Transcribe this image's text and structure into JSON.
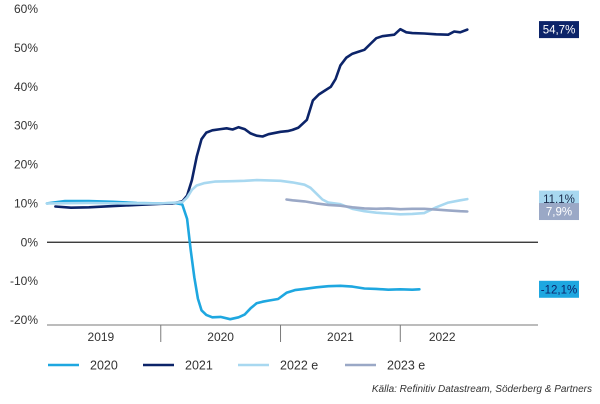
{
  "chart_data": {
    "type": "line",
    "title": "",
    "xlabel": "",
    "ylabel": "",
    "ylim": [
      -20,
      60
    ],
    "y_ticks": [
      60,
      50,
      40,
      30,
      20,
      10,
      0,
      -10,
      -20
    ],
    "y_tick_labels": [
      "60%",
      "50%",
      "40%",
      "30%",
      "20%",
      "10%",
      "0%",
      "-10%",
      "-20%"
    ],
    "x_range": [
      2018.55,
      2022.65
    ],
    "x_tick_labels": [
      {
        "label": "2019",
        "x": 2019.0
      },
      {
        "label": "2020",
        "x": 2020.0
      },
      {
        "label": "2021",
        "x": 2021.0
      },
      {
        "label": "2022",
        "x": 2021.85
      }
    ],
    "x_separators": [
      2019.5,
      2020.5,
      2021.5
    ],
    "grid": false,
    "legend_position": "bottom",
    "series": [
      {
        "name": "2020",
        "color": "#1ea7e0",
        "end_label": "-12,1%",
        "points": [
          [
            2018.55,
            10.0
          ],
          [
            2018.7,
            10.6
          ],
          [
            2018.9,
            10.6
          ],
          [
            2019.1,
            10.4
          ],
          [
            2019.3,
            10.1
          ],
          [
            2019.5,
            10.0
          ],
          [
            2019.62,
            10.1
          ],
          [
            2019.68,
            9.7
          ],
          [
            2019.72,
            6.0
          ],
          [
            2019.75,
            -2.0
          ],
          [
            2019.78,
            -9.0
          ],
          [
            2019.81,
            -14.5
          ],
          [
            2019.84,
            -17.5
          ],
          [
            2019.88,
            -18.7
          ],
          [
            2019.93,
            -19.3
          ],
          [
            2020.0,
            -19.2
          ],
          [
            2020.08,
            -19.8
          ],
          [
            2020.15,
            -19.3
          ],
          [
            2020.2,
            -18.6
          ],
          [
            2020.25,
            -17.0
          ],
          [
            2020.3,
            -15.7
          ],
          [
            2020.35,
            -15.3
          ],
          [
            2020.4,
            -15.0
          ],
          [
            2020.48,
            -14.6
          ],
          [
            2020.55,
            -13.0
          ],
          [
            2020.62,
            -12.3
          ],
          [
            2020.7,
            -12.0
          ],
          [
            2020.8,
            -11.6
          ],
          [
            2020.9,
            -11.3
          ],
          [
            2021.0,
            -11.2
          ],
          [
            2021.1,
            -11.4
          ],
          [
            2021.2,
            -11.9
          ],
          [
            2021.3,
            -12.0
          ],
          [
            2021.4,
            -12.2
          ],
          [
            2021.5,
            -12.1
          ],
          [
            2021.6,
            -12.2
          ],
          [
            2021.66,
            -12.1
          ]
        ]
      },
      {
        "name": "2021",
        "color": "#0c2469",
        "end_label": "54,7%",
        "points": [
          [
            2018.62,
            9.2
          ],
          [
            2018.75,
            8.9
          ],
          [
            2018.9,
            9.0
          ],
          [
            2019.1,
            9.3
          ],
          [
            2019.3,
            9.6
          ],
          [
            2019.5,
            9.9
          ],
          [
            2019.6,
            10.0
          ],
          [
            2019.68,
            10.5
          ],
          [
            2019.72,
            12.0
          ],
          [
            2019.76,
            16.0
          ],
          [
            2019.8,
            22.0
          ],
          [
            2019.84,
            26.5
          ],
          [
            2019.88,
            28.2
          ],
          [
            2019.93,
            28.8
          ],
          [
            2020.0,
            29.1
          ],
          [
            2020.05,
            29.3
          ],
          [
            2020.1,
            29.0
          ],
          [
            2020.15,
            29.6
          ],
          [
            2020.2,
            29.1
          ],
          [
            2020.25,
            28.0
          ],
          [
            2020.3,
            27.4
          ],
          [
            2020.35,
            27.2
          ],
          [
            2020.4,
            27.8
          ],
          [
            2020.5,
            28.4
          ],
          [
            2020.56,
            28.6
          ],
          [
            2020.6,
            28.9
          ],
          [
            2020.65,
            29.5
          ],
          [
            2020.72,
            31.5
          ],
          [
            2020.77,
            36.5
          ],
          [
            2020.82,
            38.0
          ],
          [
            2020.87,
            39.0
          ],
          [
            2020.92,
            40.0
          ],
          [
            2020.96,
            42.0
          ],
          [
            2021.0,
            45.5
          ],
          [
            2021.05,
            47.5
          ],
          [
            2021.1,
            48.5
          ],
          [
            2021.15,
            49.0
          ],
          [
            2021.2,
            49.5
          ],
          [
            2021.25,
            51.0
          ],
          [
            2021.3,
            52.5
          ],
          [
            2021.35,
            53.0
          ],
          [
            2021.4,
            53.2
          ],
          [
            2021.45,
            53.4
          ],
          [
            2021.5,
            54.8
          ],
          [
            2021.55,
            54.0
          ],
          [
            2021.6,
            53.8
          ],
          [
            2021.7,
            53.7
          ],
          [
            2021.8,
            53.5
          ],
          [
            2021.9,
            53.4
          ],
          [
            2021.95,
            54.2
          ],
          [
            2022.0,
            54.0
          ],
          [
            2022.06,
            54.7
          ]
        ]
      },
      {
        "name": "2022 e",
        "color": "#a8d8f0",
        "end_label": "11,1%",
        "points": [
          [
            2018.55,
            10.0
          ],
          [
            2018.9,
            10.1
          ],
          [
            2019.2,
            10.0
          ],
          [
            2019.5,
            10.0
          ],
          [
            2019.68,
            10.3
          ],
          [
            2019.72,
            11.5
          ],
          [
            2019.76,
            13.5
          ],
          [
            2019.8,
            14.6
          ],
          [
            2019.86,
            15.2
          ],
          [
            2019.95,
            15.6
          ],
          [
            2020.1,
            15.7
          ],
          [
            2020.2,
            15.8
          ],
          [
            2020.3,
            16.0
          ],
          [
            2020.4,
            15.9
          ],
          [
            2020.5,
            15.8
          ],
          [
            2020.6,
            15.4
          ],
          [
            2020.7,
            14.8
          ],
          [
            2020.75,
            14.0
          ],
          [
            2020.8,
            12.5
          ],
          [
            2020.85,
            11.0
          ],
          [
            2020.9,
            10.2
          ],
          [
            2021.0,
            9.8
          ],
          [
            2021.1,
            8.6
          ],
          [
            2021.2,
            8.0
          ],
          [
            2021.3,
            7.6
          ],
          [
            2021.4,
            7.4
          ],
          [
            2021.5,
            7.2
          ],
          [
            2021.6,
            7.3
          ],
          [
            2021.7,
            7.5
          ],
          [
            2021.8,
            9.0
          ],
          [
            2021.9,
            10.2
          ],
          [
            2022.0,
            10.8
          ],
          [
            2022.06,
            11.1
          ]
        ]
      },
      {
        "name": "2023 e",
        "color": "#9aa8c6",
        "end_label": "7,9%",
        "points": [
          [
            2020.55,
            11.0
          ],
          [
            2020.6,
            10.8
          ],
          [
            2020.7,
            10.5
          ],
          [
            2020.8,
            10.0
          ],
          [
            2020.9,
            9.6
          ],
          [
            2021.0,
            9.4
          ],
          [
            2021.1,
            9.0
          ],
          [
            2021.2,
            8.7
          ],
          [
            2021.3,
            8.6
          ],
          [
            2021.4,
            8.7
          ],
          [
            2021.5,
            8.5
          ],
          [
            2021.6,
            8.6
          ],
          [
            2021.7,
            8.6
          ],
          [
            2021.8,
            8.4
          ],
          [
            2021.9,
            8.2
          ],
          [
            2022.0,
            8.0
          ],
          [
            2022.06,
            7.9
          ]
        ]
      }
    ],
    "end_label_style": [
      {
        "series": "2021",
        "bg": "#0c2469",
        "text": "#ffffff"
      },
      {
        "series": "2022 e",
        "bg": "#a8d8f0",
        "text": "#1a2a4a"
      },
      {
        "series": "2023 e",
        "bg": "#9aa8c6",
        "text": "#ffffff"
      },
      {
        "series": "2020",
        "bg": "#1ea7e0",
        "text": "#0c2469"
      }
    ]
  },
  "source": "Källa: Refinitiv Datastream, Söderberg & Partners"
}
